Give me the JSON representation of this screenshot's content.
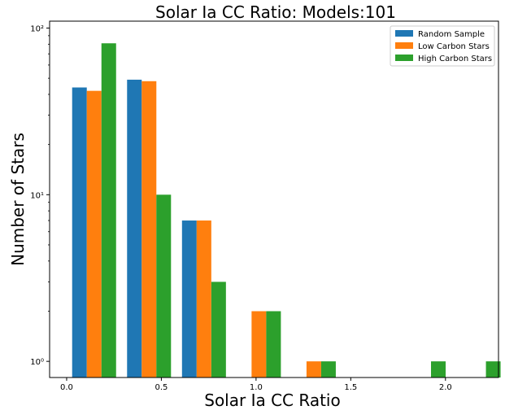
{
  "chart_data": {
    "type": "bar",
    "title": "Solar Ia CC Ratio: Models:101",
    "xlabel": "Solar Ia CC Ratio",
    "ylabel": "Number of Stars",
    "yscale": "log",
    "xlim": [
      -0.09,
      2.28
    ],
    "ylim": [
      0.8,
      110
    ],
    "grid": false,
    "legend_position": "top-right",
    "x_ticks": [
      {
        "value": 0.0,
        "label": "0.0"
      },
      {
        "value": 0.5,
        "label": "0.5"
      },
      {
        "value": 1.0,
        "label": "1.0"
      },
      {
        "value": 1.5,
        "label": "1.5"
      },
      {
        "value": 2.0,
        "label": "2.0"
      }
    ],
    "y_ticks": [
      {
        "value": 1,
        "label": "10⁰"
      },
      {
        "value": 10,
        "label": "10¹"
      },
      {
        "value": 100,
        "label": "10²"
      }
    ],
    "bin_edges": [
      0.0,
      0.29,
      0.58,
      0.87,
      1.16,
      1.45,
      1.74,
      2.03,
      2.32
    ],
    "series": [
      {
        "name": "Random Sample",
        "color": "#1f77b4",
        "values": [
          44,
          49,
          7,
          0,
          0,
          0,
          0,
          0
        ]
      },
      {
        "name": "Low Carbon Stars",
        "color": "#ff7f0e",
        "values": [
          42,
          48,
          7,
          2,
          1,
          0,
          0,
          0
        ]
      },
      {
        "name": "High Carbon Stars",
        "color": "#2ca02c",
        "values": [
          81,
          10,
          3,
          2,
          1,
          0,
          1,
          1
        ]
      }
    ]
  }
}
